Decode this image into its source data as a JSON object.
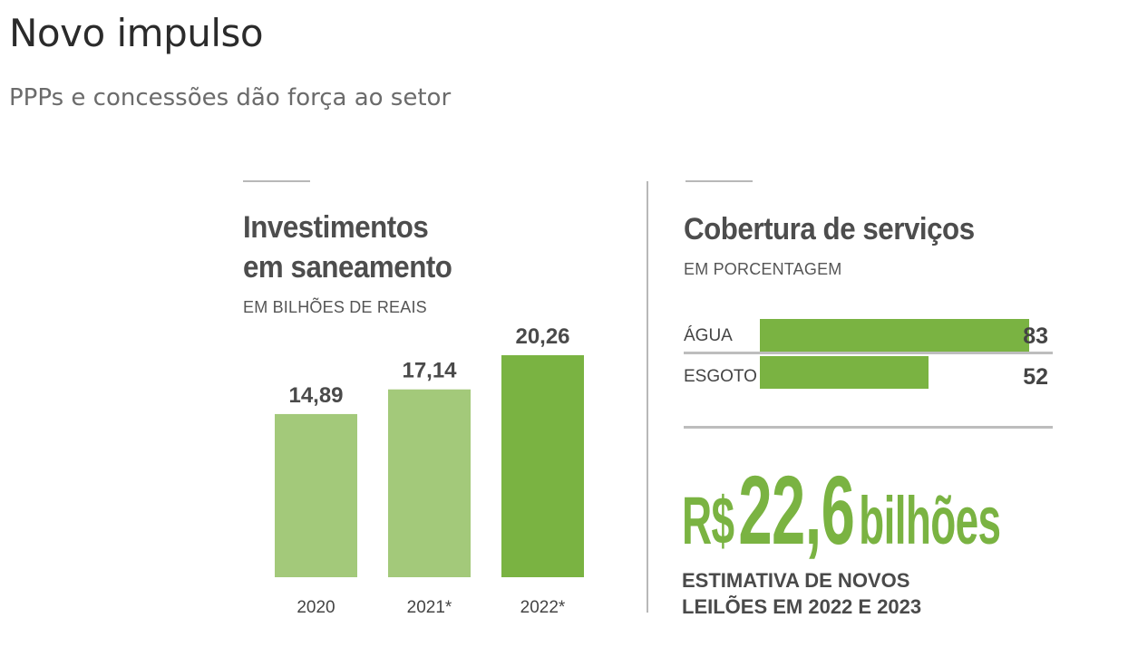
{
  "header": {
    "title": "Novo impulso",
    "subtitle": "PPPs e concessões dão força ao setor"
  },
  "investments": {
    "title_line1": "Investimentos",
    "title_line2": "em saneamento",
    "unit": "EM BILHÕES DE REAIS"
  },
  "coverage": {
    "title": "Cobertura de serviços",
    "unit": "EM PORCENTAGEM",
    "rows": [
      {
        "label": "ÁGUA",
        "value_text": "83"
      },
      {
        "label": "ESGOTO",
        "value_text": "52"
      }
    ]
  },
  "highlight": {
    "currency": "R$",
    "number": "22,6",
    "unit": "bilhões",
    "caption_line1": "ESTIMATIVA DE NOVOS",
    "caption_line2": "LEILÕES EM 2022 E 2023"
  },
  "colors": {
    "bar_light": "#a3c97a",
    "bar_dark": "#7ab342",
    "text_dark": "#4d4d4d"
  },
  "chart_data": [
    {
      "type": "bar",
      "title": "Investimentos em saneamento",
      "ylabel": "EM BILHÕES DE REAIS",
      "categories": [
        "2020",
        "2021*",
        "2022*"
      ],
      "values": [
        14.89,
        17.14,
        20.26
      ],
      "value_labels": [
        "14,89",
        "17,14",
        "20,26"
      ],
      "highlight_index": 2,
      "ylim": [
        0,
        22
      ],
      "grid": false,
      "legend": "none"
    },
    {
      "type": "bar",
      "orientation": "horizontal",
      "title": "Cobertura de serviços",
      "xlabel": "EM PORCENTAGEM",
      "categories": [
        "ÁGUA",
        "ESGOTO"
      ],
      "values": [
        83,
        52
      ],
      "xlim": [
        0,
        100
      ],
      "grid": false,
      "legend": "none"
    }
  ]
}
